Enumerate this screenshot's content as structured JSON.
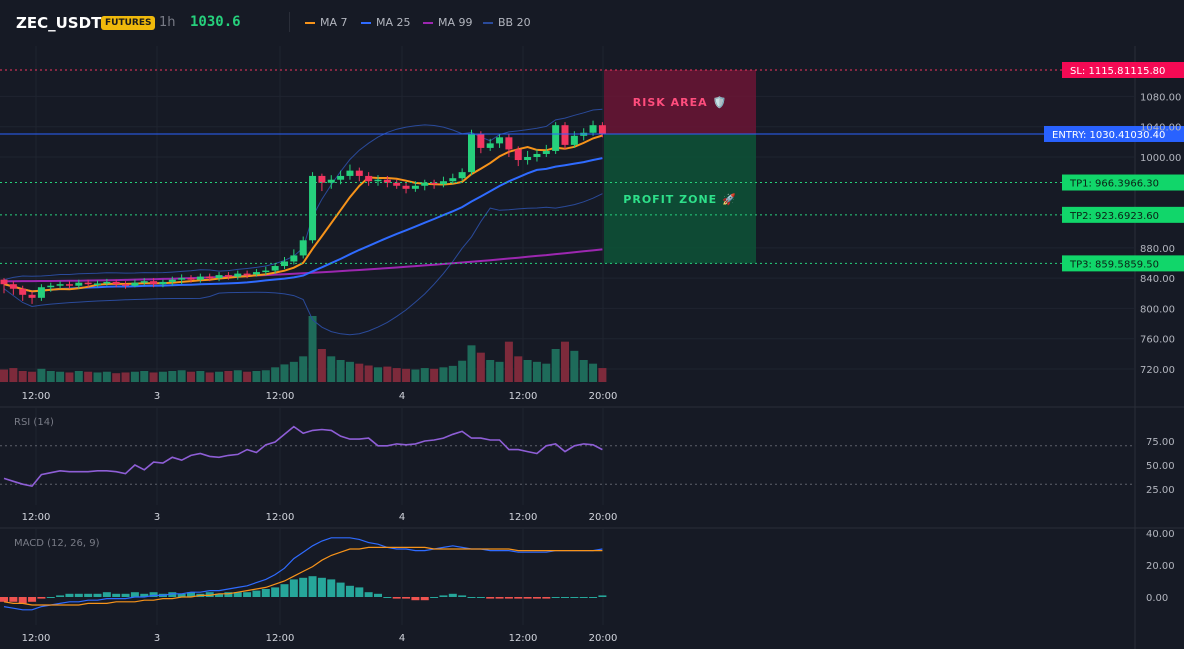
{
  "header": {
    "symbol": "ZEC_USDT",
    "badge": "FUTURES",
    "interval": "1h",
    "last_price": "1030.6",
    "legend": [
      {
        "label": "MA 7",
        "color": "#f7931a"
      },
      {
        "label": "MA 25",
        "color": "#2f6bff"
      },
      {
        "label": "MA 99",
        "color": "#9c27b0"
      },
      {
        "label": "BB 20",
        "color": "#2a4a9a"
      }
    ]
  },
  "colors": {
    "up": "#26d07c",
    "down": "#f23660",
    "background": "#161a25",
    "entry": "#2962ff",
    "risk": "#7a1a3f",
    "profit": "#0f5e3e"
  },
  "chart_data": [
    {
      "type": "candlestick",
      "panel": "price",
      "x_tick_labels": [
        "12:00",
        "3",
        "12:00",
        "4",
        "12:00",
        "20:00"
      ],
      "y_ticks": [
        "1080.00",
        "1040.00",
        "1000.00",
        "880.00",
        "840.00",
        "800.00",
        "760.00",
        "720.00"
      ],
      "ylim": [
        700,
        1120
      ],
      "series": [
        {
          "name": "MA 7",
          "color": "#f7931a"
        },
        {
          "name": "MA 25",
          "color": "#2f6bff"
        },
        {
          "name": "MA 99",
          "color": "#9c27b0"
        },
        {
          "name": "BB 20",
          "color": "#2a4a9a"
        }
      ],
      "candles": [
        [
          838,
          832,
          840,
          820
        ],
        [
          832,
          826,
          836,
          818
        ],
        [
          826,
          818,
          830,
          810
        ],
        [
          818,
          814,
          822,
          806
        ],
        [
          814,
          828,
          832,
          810
        ],
        [
          828,
          830,
          834,
          822
        ],
        [
          830,
          832,
          836,
          826
        ],
        [
          832,
          830,
          836,
          826
        ],
        [
          830,
          834,
          838,
          826
        ],
        [
          834,
          832,
          838,
          828
        ],
        [
          832,
          833,
          837,
          828
        ],
        [
          833,
          835,
          839,
          830
        ],
        [
          835,
          832,
          838,
          828
        ],
        [
          832,
          830,
          836,
          826
        ],
        [
          830,
          834,
          838,
          828
        ],
        [
          834,
          836,
          840,
          830
        ],
        [
          836,
          832,
          840,
          828
        ],
        [
          832,
          835,
          838,
          828
        ],
        [
          835,
          838,
          842,
          830
        ],
        [
          838,
          840,
          845,
          832
        ],
        [
          840,
          838,
          844,
          834
        ],
        [
          838,
          842,
          846,
          834
        ],
        [
          842,
          840,
          846,
          836
        ],
        [
          840,
          844,
          848,
          836
        ],
        [
          844,
          842,
          848,
          838
        ],
        [
          842,
          846,
          850,
          838
        ],
        [
          846,
          845,
          850,
          840
        ],
        [
          845,
          848,
          852,
          842
        ],
        [
          848,
          850,
          855,
          844
        ],
        [
          850,
          856,
          860,
          846
        ],
        [
          856,
          862,
          868,
          852
        ],
        [
          862,
          870,
          878,
          858
        ],
        [
          870,
          890,
          895,
          866
        ],
        [
          890,
          975,
          980,
          886
        ],
        [
          975,
          966,
          978,
          955
        ],
        [
          966,
          970,
          976,
          958
        ],
        [
          970,
          975,
          982,
          964
        ],
        [
          975,
          982,
          990,
          970
        ],
        [
          982,
          975,
          986,
          968
        ],
        [
          975,
          968,
          980,
          962
        ],
        [
          968,
          970,
          976,
          962
        ],
        [
          970,
          966,
          975,
          960
        ],
        [
          966,
          962,
          970,
          958
        ],
        [
          962,
          958,
          966,
          952
        ],
        [
          958,
          962,
          968,
          954
        ],
        [
          962,
          966,
          970,
          956
        ],
        [
          966,
          964,
          970,
          958
        ],
        [
          964,
          968,
          974,
          960
        ],
        [
          968,
          972,
          978,
          964
        ],
        [
          972,
          980,
          985,
          968
        ],
        [
          980,
          1030,
          1036,
          976
        ],
        [
          1030,
          1012,
          1034,
          1005
        ],
        [
          1012,
          1018,
          1024,
          1008
        ],
        [
          1018,
          1026,
          1030,
          1012
        ],
        [
          1026,
          1010,
          1030,
          1000
        ],
        [
          1010,
          996,
          1014,
          988
        ],
        [
          996,
          1000,
          1008,
          990
        ],
        [
          1000,
          1004,
          1010,
          994
        ],
        [
          1004,
          1008,
          1016,
          1000
        ],
        [
          1008,
          1042,
          1046,
          1004
        ],
        [
          1042,
          1016,
          1046,
          1010
        ],
        [
          1016,
          1028,
          1034,
          1012
        ],
        [
          1028,
          1032,
          1038,
          1022
        ],
        [
          1032,
          1042,
          1048,
          1028
        ],
        [
          1042,
          1030.6,
          1046,
          1026
        ]
      ],
      "volumes": [
        34,
        38,
        30,
        28,
        36,
        30,
        28,
        26,
        30,
        28,
        26,
        28,
        24,
        26,
        28,
        30,
        26,
        28,
        30,
        32,
        28,
        30,
        26,
        28,
        30,
        32,
        28,
        30,
        32,
        40,
        48,
        55,
        70,
        180,
        90,
        70,
        60,
        55,
        50,
        45,
        40,
        42,
        38,
        36,
        34,
        38,
        36,
        40,
        44,
        58,
        100,
        80,
        60,
        55,
        110,
        70,
        60,
        55,
        50,
        90,
        110,
        85,
        60,
        50,
        38
      ]
    },
    {
      "type": "line",
      "panel": "rsi",
      "title": "RSI (14)",
      "y_ticks": [
        "75.00",
        "50.00",
        "25.00"
      ],
      "ylim": [
        15,
        95
      ],
      "levels": [
        70,
        30
      ],
      "x_tick_labels": [
        "12:00",
        "3",
        "12:00",
        "4",
        "12:00",
        "20:00"
      ],
      "values": [
        36,
        33,
        30,
        28,
        40,
        42,
        44,
        43,
        43,
        43,
        44,
        44,
        43,
        41,
        50,
        45,
        53,
        52,
        58,
        55,
        60,
        62,
        59,
        58,
        60,
        61,
        66,
        63,
        71,
        74,
        82,
        90,
        83,
        86,
        87,
        86,
        80,
        77,
        77,
        78,
        70,
        70,
        72,
        71,
        72,
        75,
        76,
        78,
        82,
        85,
        78,
        78,
        76,
        76,
        66,
        66,
        64,
        62,
        70,
        72,
        64,
        70,
        72,
        71,
        66
      ],
      "color": "#8e5ed6"
    },
    {
      "type": "macd",
      "panel": "macd",
      "title": "MACD (12, 26, 9)",
      "y_ticks": [
        "40.00",
        "20.00",
        "0.00"
      ],
      "ylim": [
        -15,
        44
      ],
      "x_tick_labels": [
        "12:00",
        "3",
        "12:00",
        "4",
        "12:00",
        "20:00"
      ],
      "macd": [
        -6,
        -7,
        -8,
        -8,
        -6,
        -5,
        -4,
        -3,
        -3,
        -2,
        -2,
        -1,
        -1,
        -1,
        0,
        0,
        1,
        1,
        2,
        2,
        3,
        3,
        4,
        4,
        5,
        6,
        7,
        9,
        11,
        14,
        18,
        24,
        28,
        32,
        35,
        37,
        37,
        37,
        36,
        34,
        33,
        31,
        30,
        30,
        29,
        29,
        30,
        31,
        32,
        31,
        30,
        30,
        29,
        29,
        29,
        28,
        28,
        28,
        28,
        29,
        29,
        29,
        29,
        29,
        30
      ],
      "signal": [
        -3,
        -4,
        -4,
        -5,
        -5,
        -5,
        -5,
        -5,
        -5,
        -4,
        -4,
        -4,
        -3,
        -3,
        -3,
        -2,
        -2,
        -1,
        -1,
        0,
        0,
        1,
        1,
        2,
        2,
        3,
        4,
        5,
        6,
        8,
        10,
        13,
        16,
        19,
        23,
        26,
        28,
        30,
        30,
        31,
        31,
        31,
        31,
        31,
        31,
        31,
        30,
        30,
        30,
        30,
        30,
        30,
        30,
        30,
        30,
        29,
        29,
        29,
        29,
        29,
        29,
        29,
        29,
        29,
        29
      ],
      "histogram": [
        -3,
        -3,
        -4,
        -3,
        -1,
        0,
        1,
        2,
        2,
        2,
        2,
        3,
        2,
        2,
        3,
        2,
        3,
        2,
        3,
        2,
        3,
        2,
        3,
        2,
        3,
        3,
        3,
        4,
        5,
        6,
        8,
        11,
        12,
        13,
        12,
        11,
        9,
        7,
        6,
        3,
        2,
        0,
        -1,
        -1,
        -2,
        -2,
        0,
        1,
        2,
        1,
        0,
        0,
        -1,
        -1,
        -1,
        -1,
        -1,
        -1,
        -1,
        0,
        0,
        0,
        0,
        0,
        1
      ],
      "macd_color": "#2f6bff",
      "signal_color": "#f7931a"
    }
  ],
  "trade": {
    "sl_label": "SL: 1115.8",
    "sl_value": "1115.80",
    "entry_label": "ENTRY: 1030.4",
    "entry_value": "1030.40",
    "tp1_label": "TP1: 966.3",
    "tp1_value": "966.30",
    "tp2_label": "TP2: 923.6",
    "tp2_value": "923.60",
    "tp3_label": "TP3: 859.5",
    "tp3_value": "859.50",
    "risk_label": "RISK AREA 🛡️",
    "profit_label": "PROFIT ZONE 🚀",
    "sl": 1115.8,
    "entry": 1030.4,
    "tp1": 966.3,
    "tp2": 923.6,
    "tp3": 859.5
  }
}
